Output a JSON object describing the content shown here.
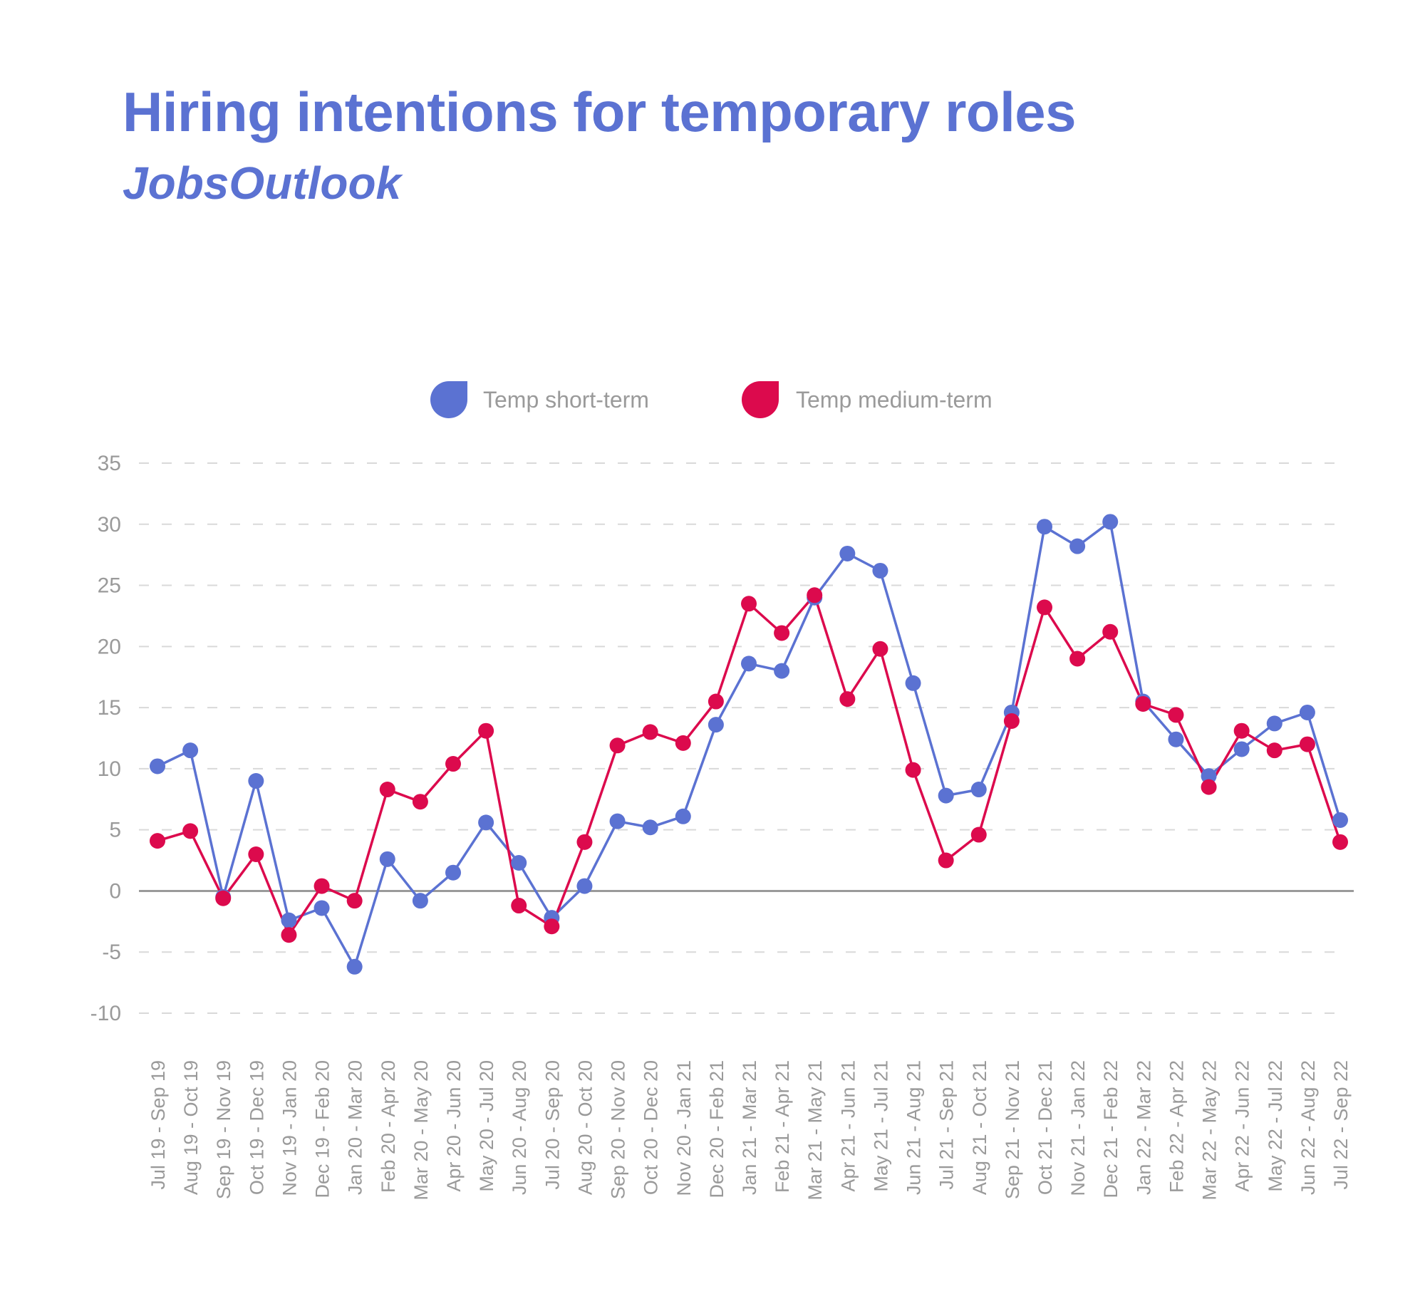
{
  "header": {
    "title": "Hiring intentions for temporary roles",
    "subtitle": "JobsOutlook"
  },
  "chart_data": {
    "type": "line",
    "title": "Hiring intentions for temporary roles",
    "subtitle": "JobsOutlook",
    "xlabel": "",
    "ylabel": "",
    "ylim": [
      -10,
      35
    ],
    "yticks": [
      35,
      30,
      25,
      20,
      15,
      10,
      5,
      0,
      -5,
      -10
    ],
    "grid": true,
    "legend_position": "top-center",
    "categories": [
      "Jul 19 - Sep 19",
      "Aug 19 - Oct 19",
      "Sep 19 - Nov 19",
      "Oct 19 - Dec 19",
      "Nov 19 - Jan 20",
      "Dec 19 - Feb 20",
      "Jan 20 - Mar 20",
      "Feb 20 - Apr 20",
      "Mar 20 - May 20",
      "Apr 20 - Jun 20",
      "May 20 - Jul 20",
      "Jun 20 - Aug 20",
      "Jul 20 - Sep 20",
      "Aug 20 - Oct 20",
      "Sep 20 - Nov 20",
      "Oct 20 - Dec 20",
      "Nov 20 - Jan 21",
      "Dec 20 - Feb 21",
      "Jan 21 - Mar 21",
      "Feb 21 - Apr 21",
      "Mar 21 - May 21",
      "Apr 21 - Jun 21",
      "May 21 - Jul 21",
      "Jun 21 - Aug 21",
      "Jul 21 - Sep 21",
      "Aug 21 - Oct 21",
      "Sep 21 - Nov 21",
      "Oct 21 - Dec 21",
      "Nov 21 - Jan 22",
      "Dec 21 - Feb 22",
      "Jan 22 - Mar 22",
      "Feb 22 - Apr 22",
      "Mar 22 - May 22",
      "Apr 22 - Jun 22",
      "May 22 - Jul 22",
      "Jun 22 - Aug 22",
      "Jul 22 - Sep 22"
    ],
    "series": [
      {
        "name": "Temp short-term",
        "color": "#5b72d2",
        "values": [
          10.2,
          11.5,
          -0.5,
          9.0,
          -2.4,
          -1.4,
          -6.2,
          2.6,
          -0.8,
          1.5,
          5.6,
          2.3,
          -2.2,
          0.4,
          5.7,
          5.2,
          6.1,
          13.6,
          18.6,
          18.0,
          24.0,
          27.6,
          26.2,
          17.0,
          7.8,
          8.3,
          14.6,
          29.8,
          28.2,
          30.2,
          15.5,
          12.4,
          9.4,
          11.6,
          13.7,
          14.6,
          5.8
        ]
      },
      {
        "name": "Temp medium-term",
        "color": "#dc0a4d",
        "values": [
          4.1,
          4.9,
          -0.6,
          3.0,
          -3.6,
          0.4,
          -0.8,
          8.3,
          7.3,
          10.4,
          13.1,
          -1.2,
          -2.9,
          4.0,
          11.9,
          13.0,
          12.1,
          15.5,
          23.5,
          21.1,
          24.2,
          15.7,
          19.8,
          9.9,
          2.5,
          4.6,
          13.9,
          23.2,
          19.0,
          21.2,
          15.3,
          14.4,
          8.5,
          13.1,
          11.5,
          12.0,
          4.0
        ]
      }
    ]
  }
}
